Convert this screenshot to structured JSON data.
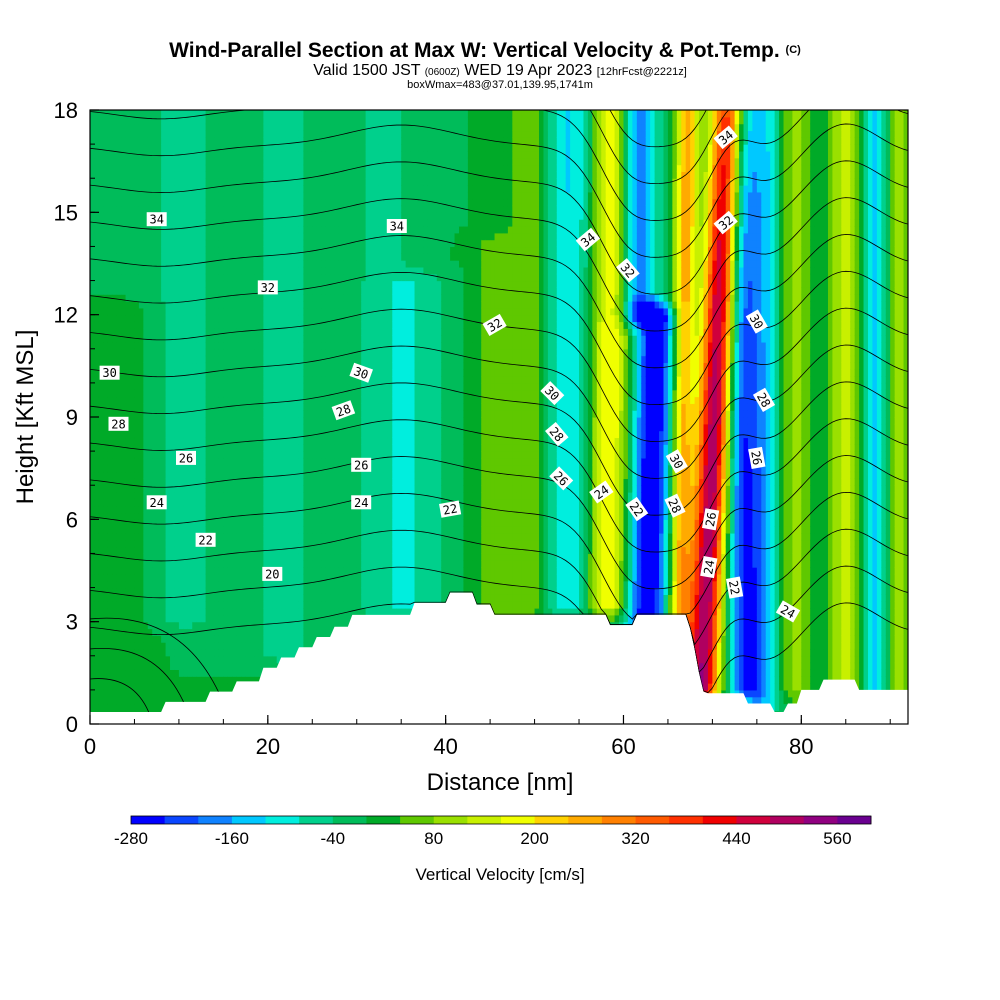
{
  "chart_data": {
    "type": "heatmap",
    "title": "Wind-Parallel Section at Max W: Vertical Velocity & Pot.Temp.",
    "title_mark": "(C)",
    "subtitle_1": "Valid 1500 JST",
    "subtitle_1_utc": "(0600Z)",
    "subtitle_1_date": "WED 19 Apr 2023",
    "subtitle_1_fcst": "[12hrFcst@2221z]",
    "subtitle_2": "boxWmax=483@37.01,139.95,1741m",
    "xlabel": "Distance [nm]",
    "ylabel": "Height [Kft MSL]",
    "xlim": [
      0,
      92
    ],
    "ylim": [
      0,
      18
    ],
    "xticks": [
      0,
      20,
      40,
      60,
      80
    ],
    "yticks": [
      0,
      3,
      6,
      9,
      12,
      15,
      18
    ],
    "colorbar": {
      "label": "Vertical Velocity [cm/s]",
      "min": -280,
      "max": 600,
      "step": 40,
      "tick_values": [
        -280,
        -160,
        -40,
        80,
        200,
        320,
        440,
        560
      ],
      "colors": [
        "#0000ff",
        "#0a46ff",
        "#0f82ff",
        "#00c8ff",
        "#00eede",
        "#00d08c",
        "#00bc5a",
        "#00aa28",
        "#5fc800",
        "#9ae000",
        "#c8f000",
        "#f0ff00",
        "#ffd200",
        "#ffaa00",
        "#ff8000",
        "#ff5a00",
        "#ff3000",
        "#f00000",
        "#d0003c",
        "#b00060",
        "#900080",
        "#6a0090"
      ]
    },
    "terrain": [
      [
        0,
        0.35
      ],
      [
        8,
        0.35
      ],
      [
        8.5,
        0.65
      ],
      [
        13,
        0.65
      ],
      [
        13.5,
        0.95
      ],
      [
        16,
        0.95
      ],
      [
        16.5,
        1.25
      ],
      [
        19,
        1.25
      ],
      [
        19.5,
        1.65
      ],
      [
        21,
        1.65
      ],
      [
        21.5,
        1.95
      ],
      [
        23,
        1.95
      ],
      [
        23.5,
        2.25
      ],
      [
        25,
        2.25
      ],
      [
        25.5,
        2.55
      ],
      [
        27,
        2.55
      ],
      [
        27.5,
        2.85
      ],
      [
        29,
        2.85
      ],
      [
        29.5,
        3.2
      ],
      [
        36,
        3.2
      ],
      [
        36.5,
        3.55
      ],
      [
        40,
        3.55
      ],
      [
        40.5,
        3.85
      ],
      [
        43,
        3.85
      ],
      [
        43.5,
        3.5
      ],
      [
        45,
        3.5
      ],
      [
        45.5,
        3.2
      ],
      [
        58,
        3.2
      ],
      [
        58.5,
        2.9
      ],
      [
        61,
        2.9
      ],
      [
        61.5,
        3.2
      ],
      [
        67,
        3.2
      ],
      [
        67.5,
        2.8
      ],
      [
        68,
        2.2
      ],
      [
        68.5,
        1.5
      ],
      [
        69,
        0.95
      ],
      [
        69.5,
        0.9
      ],
      [
        73.5,
        0.9
      ],
      [
        74,
        0.6
      ],
      [
        76.5,
        0.6
      ],
      [
        77,
        0.35
      ],
      [
        78,
        0.35
      ],
      [
        78.5,
        0.6
      ],
      [
        79.5,
        0.6
      ],
      [
        80,
        1.0
      ],
      [
        82,
        1.0
      ],
      [
        82.5,
        1.3
      ],
      [
        86,
        1.3
      ],
      [
        86.5,
        1.0
      ],
      [
        92,
        1.0
      ]
    ],
    "w_features": [
      {
        "x": 68.8,
        "y0": 1.0,
        "y1": 18,
        "tilt": 0.18,
        "sigma": 1.3,
        "amp": 520
      },
      {
        "x": 66.2,
        "y0": 1.0,
        "y1": 18,
        "tilt": 0.06,
        "sigma": 0.9,
        "amp": 260
      },
      {
        "x": 62.6,
        "y0": 3.0,
        "y1": 12,
        "tilt": 0.12,
        "sigma": 1.6,
        "amp": -300
      },
      {
        "x": 61.6,
        "y0": 12,
        "y1": 18,
        "tilt": 0.0,
        "sigma": 1.5,
        "amp": -220
      },
      {
        "x": 58.0,
        "y0": 3.5,
        "y1": 18,
        "tilt": 0.05,
        "sigma": 1.7,
        "amp": 220
      },
      {
        "x": 54.0,
        "y0": 3.5,
        "y1": 18,
        "tilt": 0.0,
        "sigma": 2.4,
        "amp": -130
      },
      {
        "x": 49.5,
        "y0": 3.5,
        "y1": 18,
        "tilt": 0.0,
        "sigma": 1.8,
        "amp": 90
      },
      {
        "x": 45.5,
        "y0": 3.5,
        "y1": 14,
        "tilt": 0.0,
        "sigma": 1.5,
        "amp": 70
      },
      {
        "x": 73.8,
        "y0": 1.0,
        "y1": 18,
        "tilt": -0.05,
        "sigma": 1.4,
        "amp": -230
      },
      {
        "x": 76.0,
        "y0": 0.6,
        "y1": 18,
        "tilt": 0.0,
        "sigma": 1.3,
        "amp": -120
      },
      {
        "x": 79.5,
        "y0": 1.0,
        "y1": 18,
        "tilt": 0.0,
        "sigma": 1.6,
        "amp": 100
      },
      {
        "x": 82.5,
        "y0": 1.0,
        "y1": 18,
        "tilt": 0.0,
        "sigma": 1.5,
        "amp": -50
      },
      {
        "x": 85.0,
        "y0": 1.0,
        "y1": 18,
        "tilt": 0.0,
        "sigma": 1.7,
        "amp": 150
      },
      {
        "x": 88.5,
        "y0": 1.0,
        "y1": 18,
        "tilt": 0.0,
        "sigma": 1.3,
        "amp": -180
      },
      {
        "x": 90.5,
        "y0": 1.0,
        "y1": 18,
        "tilt": 0.0,
        "sigma": 1.2,
        "amp": 130
      },
      {
        "x": 37.0,
        "y0": 3.5,
        "y1": 13,
        "tilt": 0.0,
        "sigma": 2.5,
        "amp": -60
      },
      {
        "x": 33.0,
        "y0": 3.2,
        "y1": 18,
        "tilt": 0.0,
        "sigma": 2.5,
        "amp": -55
      },
      {
        "x": 22.0,
        "y0": 2.0,
        "y1": 18,
        "tilt": 0.0,
        "sigma": 3.0,
        "amp": -50
      },
      {
        "x": 14.0,
        "y0": 2.0,
        "y1": 18,
        "tilt": 0.0,
        "sigma": 2.8,
        "amp": -30
      },
      {
        "x": 4.0,
        "y0": 0.4,
        "y1": 12,
        "tilt": 0.0,
        "sigma": 2.5,
        "amp": 30
      },
      {
        "x": 9.0,
        "y0": 3.0,
        "y1": 18,
        "tilt": 0.0,
        "sigma": 2.5,
        "amp": -40
      }
    ],
    "theta_levels": [
      19,
      20,
      21,
      22,
      23,
      24,
      25,
      26,
      27,
      28,
      29,
      30,
      31,
      32,
      33,
      34,
      35
    ],
    "theta_labels": [
      {
        "text": "34",
        "x": 7.5,
        "y": 14.8,
        "rot": 0
      },
      {
        "text": "34",
        "x": 34.5,
        "y": 14.6,
        "rot": 0
      },
      {
        "text": "34",
        "x": 56.0,
        "y": 14.2,
        "rot": -40
      },
      {
        "text": "34",
        "x": 71.5,
        "y": 17.2,
        "rot": -40
      },
      {
        "text": "32",
        "x": 20.0,
        "y": 12.8,
        "rot": 0
      },
      {
        "text": "32",
        "x": 45.5,
        "y": 11.7,
        "rot": -30
      },
      {
        "text": "32",
        "x": 60.5,
        "y": 13.3,
        "rot": 50
      },
      {
        "text": "32",
        "x": 71.5,
        "y": 14.7,
        "rot": -40
      },
      {
        "text": "30",
        "x": 2.2,
        "y": 10.3,
        "rot": 0
      },
      {
        "text": "30",
        "x": 30.5,
        "y": 10.3,
        "rot": 20
      },
      {
        "text": "30",
        "x": 52.0,
        "y": 9.7,
        "rot": 45
      },
      {
        "text": "30",
        "x": 66.0,
        "y": 7.7,
        "rot": 60
      },
      {
        "text": "30",
        "x": 75.0,
        "y": 11.8,
        "rot": 60
      },
      {
        "text": "28",
        "x": 3.2,
        "y": 8.8,
        "rot": 0
      },
      {
        "text": "28",
        "x": 28.5,
        "y": 9.2,
        "rot": -20
      },
      {
        "text": "28",
        "x": 52.5,
        "y": 8.5,
        "rot": 50
      },
      {
        "text": "28",
        "x": 65.8,
        "y": 6.4,
        "rot": 65
      },
      {
        "text": "28",
        "x": 75.8,
        "y": 9.5,
        "rot": 60
      },
      {
        "text": "26",
        "x": 10.8,
        "y": 7.8,
        "rot": 0
      },
      {
        "text": "26",
        "x": 30.5,
        "y": 7.6,
        "rot": 0
      },
      {
        "text": "26",
        "x": 53.0,
        "y": 7.2,
        "rot": 45
      },
      {
        "text": "26",
        "x": 69.8,
        "y": 6.0,
        "rot": -80
      },
      {
        "text": "26",
        "x": 75.0,
        "y": 7.8,
        "rot": 80
      },
      {
        "text": "24",
        "x": 7.5,
        "y": 6.5,
        "rot": 0
      },
      {
        "text": "24",
        "x": 30.5,
        "y": 6.5,
        "rot": 0
      },
      {
        "text": "24",
        "x": 57.5,
        "y": 6.8,
        "rot": -35
      },
      {
        "text": "24",
        "x": 69.6,
        "y": 4.6,
        "rot": -80
      },
      {
        "text": "24",
        "x": 78.5,
        "y": 3.3,
        "rot": 30
      },
      {
        "text": "22",
        "x": 13.0,
        "y": 5.4,
        "rot": 0
      },
      {
        "text": "22",
        "x": 40.5,
        "y": 6.3,
        "rot": -10
      },
      {
        "text": "22",
        "x": 61.5,
        "y": 6.3,
        "rot": 55
      },
      {
        "text": "22",
        "x": 72.5,
        "y": 4.0,
        "rot": 80
      },
      {
        "text": "20",
        "x": 20.5,
        "y": 4.4,
        "rot": 0
      }
    ]
  }
}
